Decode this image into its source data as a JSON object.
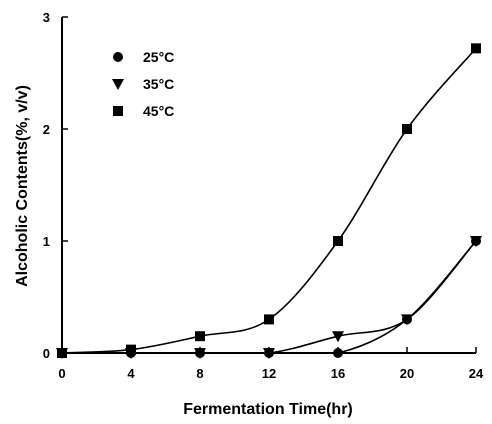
{
  "chart_data": {
    "type": "line",
    "title": "",
    "xlabel": "Fermentation Time(hr)",
    "ylabel": "Alcoholic Contents(%, v/v)",
    "xlim": [
      0,
      24
    ],
    "ylim": [
      0,
      3
    ],
    "x_ticks": [
      0,
      4,
      8,
      12,
      16,
      20,
      24
    ],
    "y_ticks": [
      0,
      1,
      2,
      3
    ],
    "grid": false,
    "legend_position": "top-left",
    "x": [
      0,
      4,
      8,
      12,
      16,
      20,
      24
    ],
    "series": [
      {
        "name": "25°C",
        "marker": "circle",
        "values": [
          0,
          0,
          0,
          0,
          0,
          0.3,
          1.0
        ]
      },
      {
        "name": "35°C",
        "marker": "triangle-down",
        "values": [
          0,
          0,
          0,
          0,
          0.15,
          0.3,
          1.0
        ]
      },
      {
        "name": "45°C",
        "marker": "square",
        "values": [
          0,
          0.03,
          0.15,
          0.3,
          1.0,
          2.0,
          2.72
        ]
      }
    ],
    "colors": {
      "ink": "#000000",
      "background": "#ffffff"
    }
  }
}
